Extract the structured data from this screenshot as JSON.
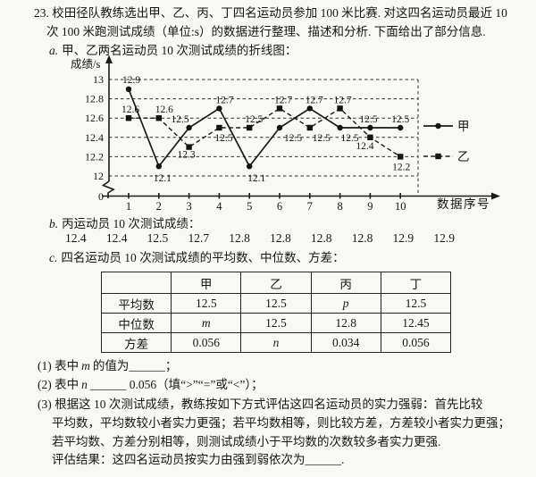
{
  "problem": {
    "line1": "23. 校田径队教练选出甲、乙、丙、丁四名运动员参加 100 米比赛. 对这四名运动员最近 10",
    "line2": "次 100 米跑测试成绩（单位:s）的数据进行整理、描述和分析. 下面给出了部分信息.",
    "item_a_prefix": "a.",
    "item_a_text": "甲、乙两名运动员 10 次测试成绩的折线图：",
    "item_b_prefix": "b.",
    "item_b_text": "丙运动员 10 次测试成绩：",
    "item_c_prefix": "c.",
    "item_c_text": "四名运动员 10 次测试成绩的平均数、中位数、方差："
  },
  "chart_data": {
    "type": "line",
    "title": "",
    "ylabel": "成绩/s",
    "xlabel": "数据序号",
    "x": [
      1,
      2,
      3,
      4,
      5,
      6,
      7,
      8,
      9,
      10
    ],
    "yticks": [
      13,
      12.8,
      12.6,
      12.4,
      12.2,
      12
    ],
    "ylim": [
      12,
      13
    ],
    "axis_break": true,
    "grid": true,
    "legend_position": "right",
    "series": [
      {
        "name": "甲",
        "marker": "circle",
        "line": "solid",
        "values": [
          12.9,
          12.1,
          12.5,
          12.7,
          12.1,
          12.5,
          12.7,
          12.5,
          12.5,
          12.5
        ]
      },
      {
        "name": "乙",
        "marker": "square",
        "line": "dashed",
        "values": [
          12.6,
          12.6,
          12.3,
          12.5,
          12.5,
          12.7,
          12.5,
          12.7,
          12.4,
          12.2
        ]
      }
    ]
  },
  "scores_b": [
    "12.4",
    "12.4",
    "12.5",
    "12.7",
    "12.8",
    "12.8",
    "12.8",
    "12.8",
    "12.9",
    "12.9"
  ],
  "table": {
    "headers": [
      "",
      "甲",
      "乙",
      "丙",
      "丁"
    ],
    "rows": [
      {
        "label": "平均数",
        "values": [
          "12.5",
          "12.5",
          "p",
          "12.5"
        ]
      },
      {
        "label": "中位数",
        "values": [
          "m",
          "12.5",
          "12.8",
          "12.45"
        ]
      },
      {
        "label": "方差",
        "values": [
          "0.056",
          "n",
          "0.034",
          "0.056"
        ]
      }
    ]
  },
  "questions": {
    "q1": {
      "num": "(1)",
      "pre": "表中",
      "var": "m",
      "post": "的值为",
      "blank": "______",
      "tail": "；"
    },
    "q2": {
      "num": "(2)",
      "pre": "表中",
      "var": "n",
      "blank": "______",
      "post": "0.056（填“>”“=”或“<”）；"
    },
    "q3_line1": "(3) 根据这 10 次测试成绩，教练按如下方式评估这四名运动员的实力强弱：首先比较",
    "q3_line2": "平均数，平均数较小者实力更强；若平均数相等，则比较方差，方差较小者实力更强；",
    "q3_line3": "若平均数、方差分别相等，则测试成绩小于平均数的次数较多者实力更强.",
    "q3_line4": "评估结果：这四名运动员按实力由强到弱依次为______."
  }
}
